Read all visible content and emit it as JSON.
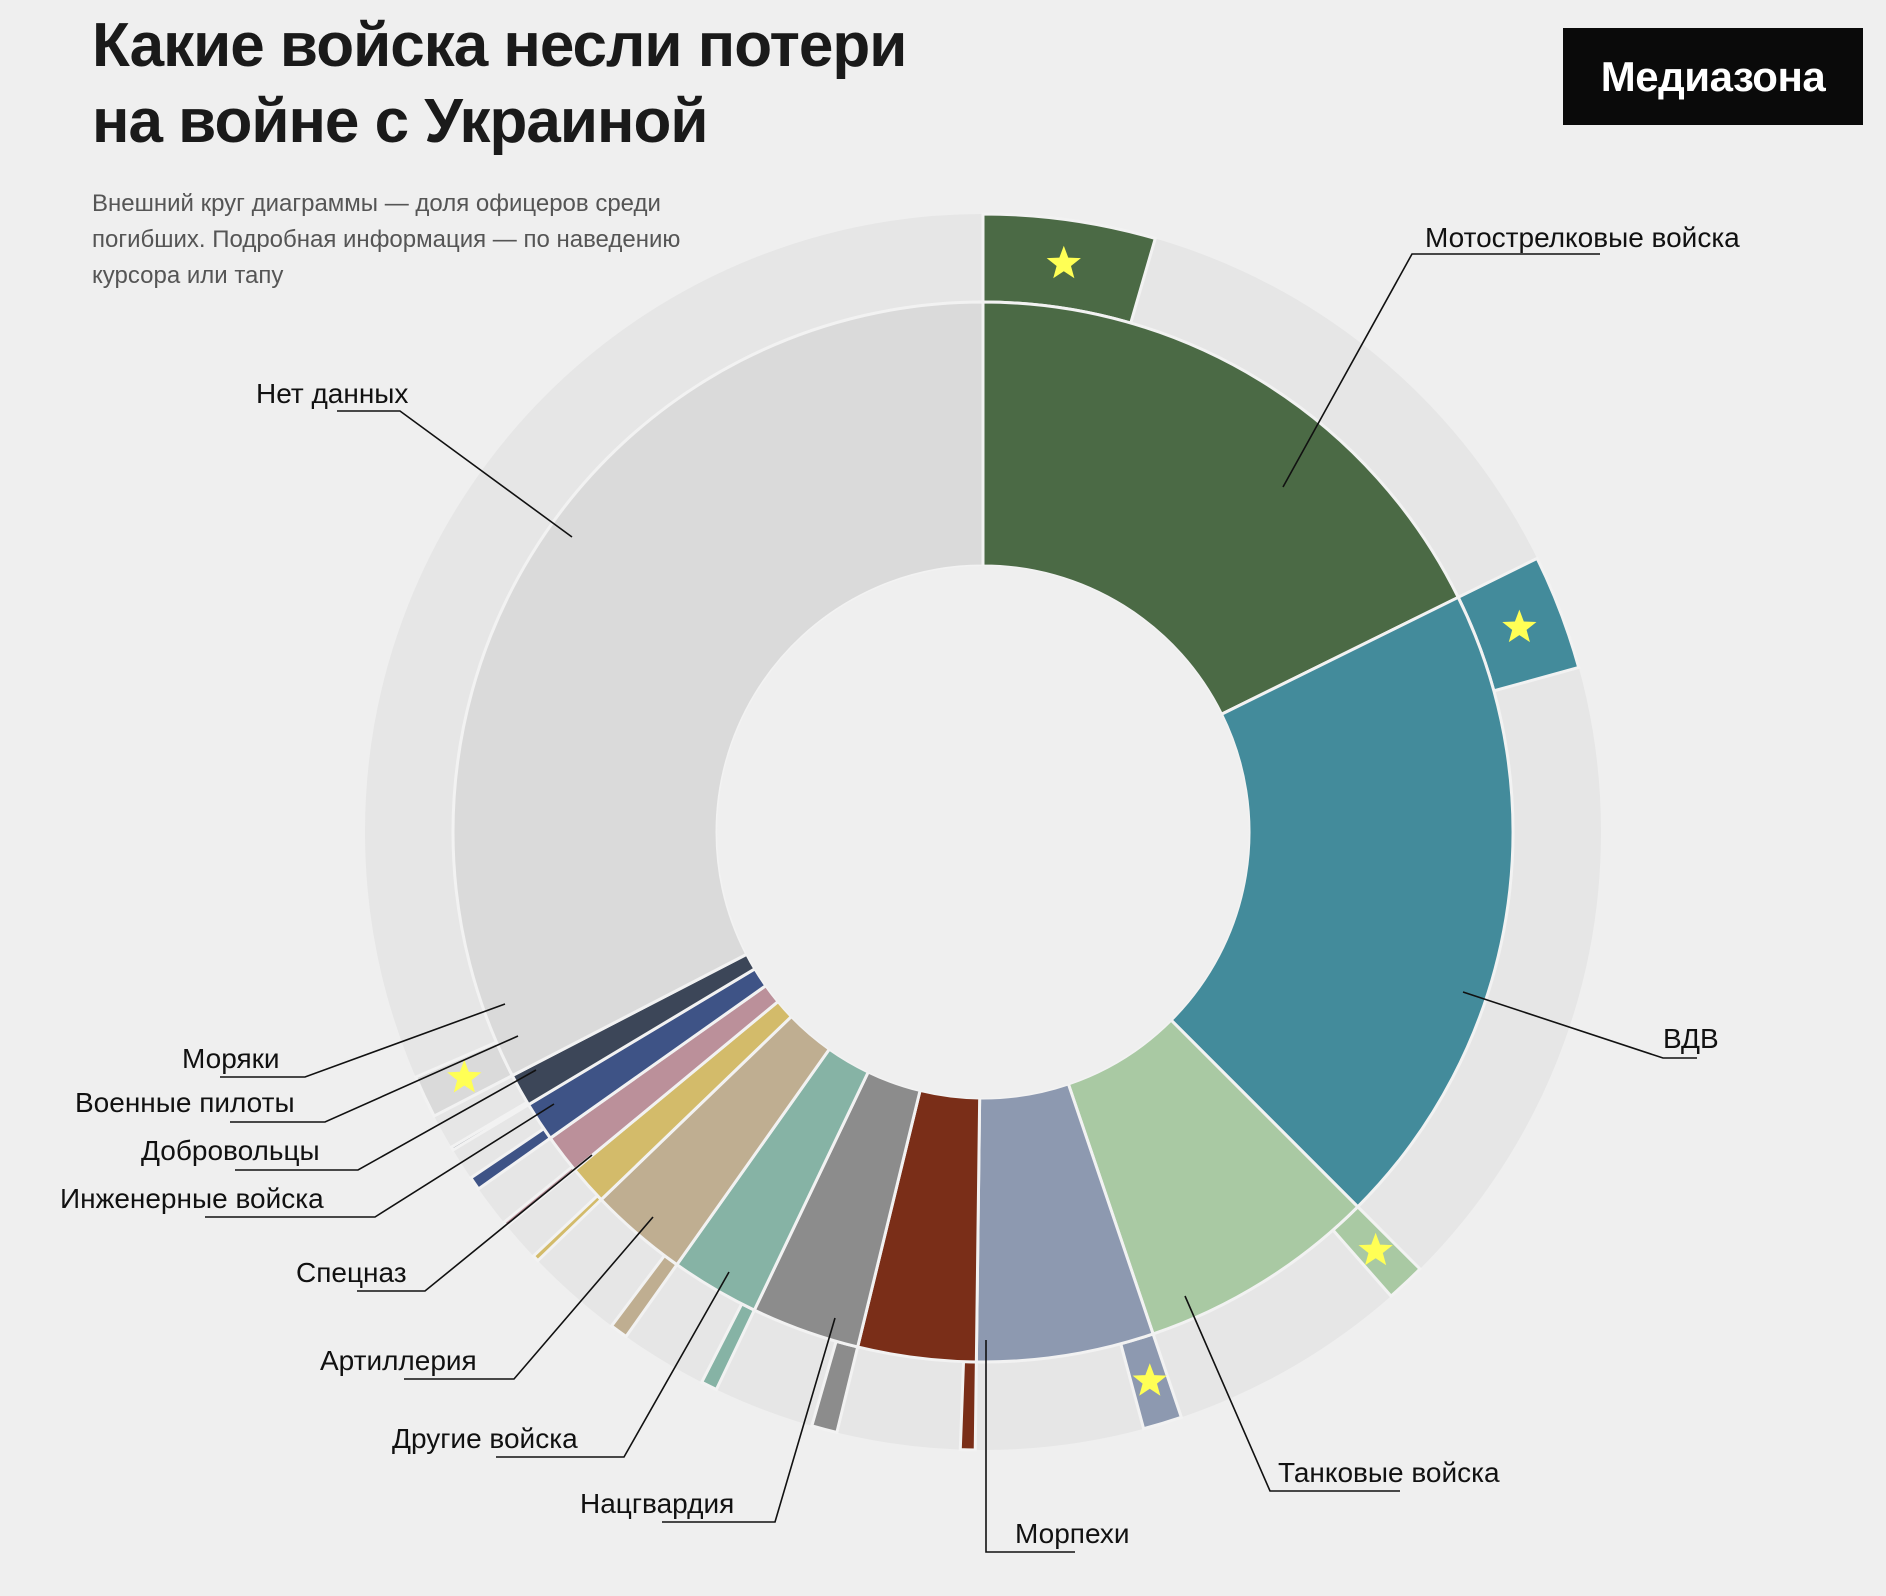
{
  "header": {
    "title": "Какие войска несли потери\nна войне с Украиной",
    "subtitle": "Внешний круг диаграммы — доля офицеров среди погибших. Подробная информация — по наведению курсора или тапу",
    "logo": "Медиазона"
  },
  "chart_data": {
    "type": "pie",
    "variant": "nested-donut",
    "inner_ring_meaning": "share of deaths by branch",
    "outer_ring_meaning": "share of officers among the dead",
    "categories": [
      "Мотострелковые войска",
      "ВДВ",
      "Танковые войска",
      "Морпехи",
      "Нацгвардия",
      "Другие войска",
      "Артиллерия",
      "Спецназ",
      "Инженерные войска",
      "Добровольцы",
      "Военные пилоты",
      "Моряки",
      "Нет данных"
    ],
    "values": [
      17.7,
      19.8,
      7.3,
      5.4,
      3.6,
      3.3,
      2.7,
      3.0,
      1.2,
      1.2,
      1.2,
      1.0,
      32.6
    ],
    "officer_share_percent": [
      25.4,
      15.2,
      14.0,
      18.8,
      10.7,
      20.2,
      15.6,
      15.4,
      13.7,
      9.8,
      28.7,
      8.2,
      3.4
    ],
    "officer_star_marks": [
      true,
      true,
      true,
      true,
      false,
      false,
      false,
      false,
      false,
      false,
      false,
      false,
      true
    ],
    "colors": [
      "#4b6a45",
      "#438b9b",
      "#a9c9a3",
      "#8d99b0",
      "#7a2e18",
      "#8c8c8c",
      "#86b3a5",
      "#bfae91",
      "#d3bb6a",
      "#bb909a",
      "#3e5386",
      "#3c4658",
      "#dadada"
    ],
    "outer_background_color": "#e6e6e6",
    "star_color": "#ffff55"
  }
}
